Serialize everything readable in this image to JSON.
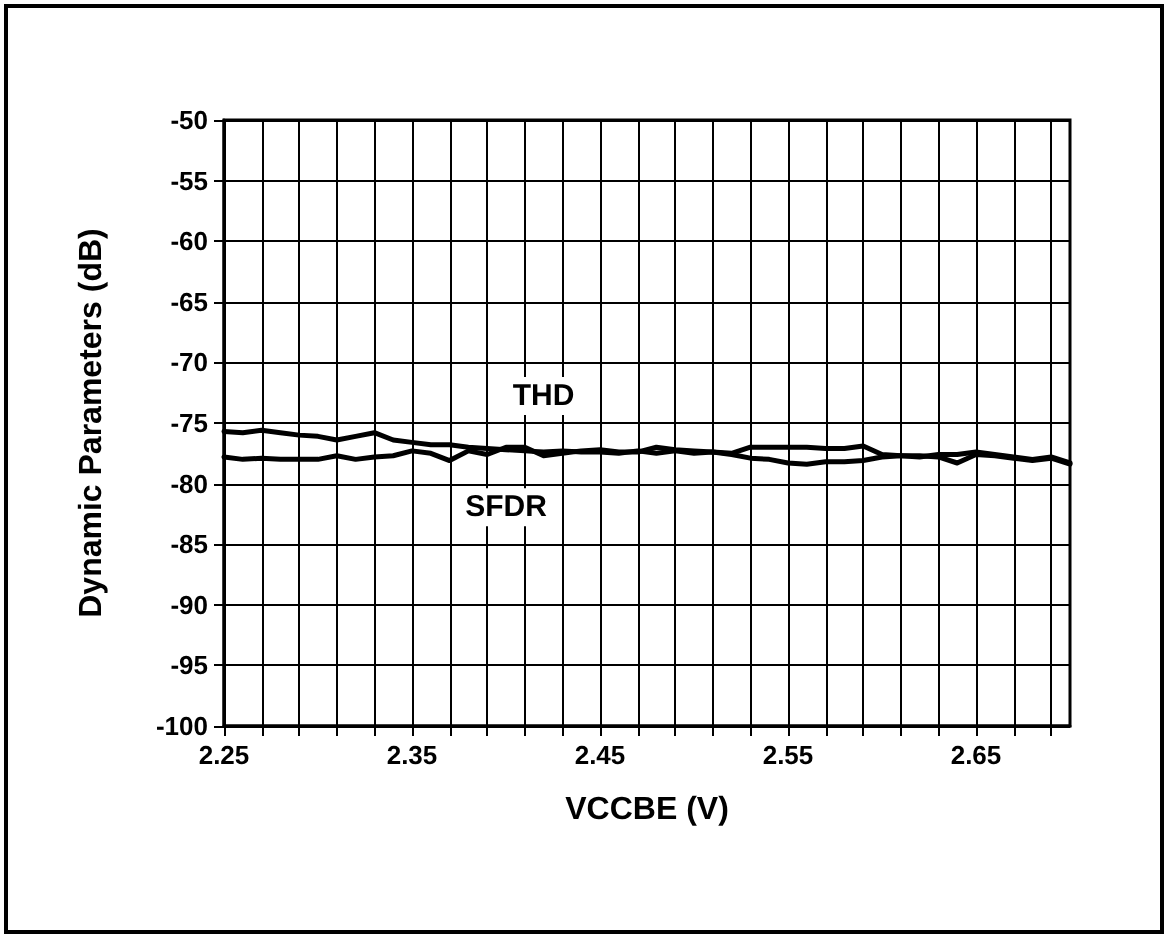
{
  "chart_data": {
    "type": "line",
    "xlabel": "VCCBE (V)",
    "ylabel": "Dynamic Parameters (dB)",
    "x": [
      2.25,
      2.26,
      2.27,
      2.28,
      2.29,
      2.3,
      2.31,
      2.32,
      2.33,
      2.34,
      2.35,
      2.36,
      2.37,
      2.38,
      2.39,
      2.4,
      2.41,
      2.42,
      2.43,
      2.44,
      2.45,
      2.46,
      2.47,
      2.48,
      2.49,
      2.5,
      2.51,
      2.52,
      2.53,
      2.54,
      2.55,
      2.56,
      2.57,
      2.58,
      2.59,
      2.6,
      2.61,
      2.62,
      2.63,
      2.64,
      2.65,
      2.66,
      2.67,
      2.68,
      2.69,
      2.7
    ],
    "series": [
      {
        "name": "THD",
        "color": "#000000",
        "values": [
          -75.7,
          -75.8,
          -75.6,
          -75.8,
          -76.0,
          -76.1,
          -76.4,
          -76.1,
          -75.8,
          -76.4,
          -76.6,
          -76.8,
          -76.8,
          -77.0,
          -77.1,
          -77.2,
          -77.3,
          -77.4,
          -77.3,
          -77.4,
          -77.4,
          -77.5,
          -77.3,
          -77.5,
          -77.3,
          -77.5,
          -77.4,
          -77.6,
          -77.9,
          -78.0,
          -78.3,
          -78.4,
          -78.2,
          -78.2,
          -78.1,
          -77.8,
          -77.7,
          -77.7,
          -77.8,
          -78.3,
          -77.6,
          -77.7,
          -77.9,
          -78.1,
          -77.9,
          -78.4
        ]
      },
      {
        "name": "SFDR",
        "color": "#000000",
        "values": [
          -77.8,
          -78.0,
          -77.9,
          -78.0,
          -78.0,
          -78.0,
          -77.7,
          -78.0,
          -77.8,
          -77.7,
          -77.3,
          -77.5,
          -78.1,
          -77.3,
          -77.6,
          -77.0,
          -77.0,
          -77.7,
          -77.5,
          -77.3,
          -77.2,
          -77.4,
          -77.4,
          -77.0,
          -77.2,
          -77.3,
          -77.4,
          -77.5,
          -77.0,
          -77.0,
          -77.0,
          -77.0,
          -77.1,
          -77.1,
          -76.9,
          -77.6,
          -77.7,
          -77.8,
          -77.6,
          -77.6,
          -77.4,
          -77.6,
          -77.8,
          -78.0,
          -77.8,
          -78.3
        ]
      }
    ],
    "xlim": [
      2.25,
      2.7
    ],
    "xticks": [
      2.25,
      {
        "value": 2.27,
        "label": null
      },
      {
        "value": 2.29,
        "label": null
      },
      {
        "value": 2.31,
        "label": null
      },
      {
        "value": 2.33,
        "label": null
      },
      2.35,
      {
        "value": 2.37,
        "label": null
      },
      {
        "value": 2.39,
        "label": null
      },
      {
        "value": 2.41,
        "label": null
      },
      {
        "value": 2.43,
        "label": null
      },
      2.45,
      {
        "value": 2.47,
        "label": null
      },
      {
        "value": 2.49,
        "label": null
      },
      {
        "value": 2.51,
        "label": null
      },
      {
        "value": 2.53,
        "label": null
      },
      2.55,
      {
        "value": 2.57,
        "label": null
      },
      {
        "value": 2.59,
        "label": null
      },
      {
        "value": 2.61,
        "label": null
      },
      {
        "value": 2.63,
        "label": null
      },
      2.65,
      {
        "value": 2.67,
        "label": null
      },
      {
        "value": 2.69,
        "label": null
      }
    ],
    "ylim": [
      -100,
      -50
    ],
    "yticks": [
      -100,
      -95,
      -90,
      -85,
      -80,
      -75,
      -70,
      -65,
      -60,
      -55,
      -50
    ],
    "grid": true,
    "legend": false,
    "marker": "none",
    "line_style": "solid"
  }
}
